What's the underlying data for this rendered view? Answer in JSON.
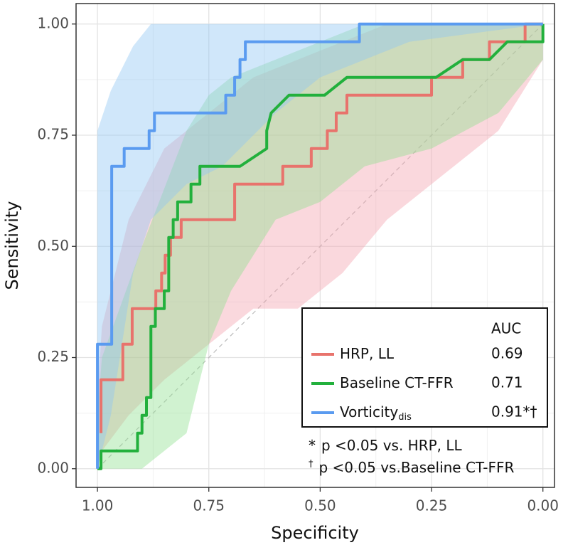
{
  "chart_data": {
    "type": "roc",
    "x_label": "Specificity",
    "y_label": "Sensitivity",
    "xlim": [
      1.048,
      -0.026
    ],
    "ylim": [
      -0.042,
      1.046
    ],
    "xticks": [
      {
        "value": 1,
        "label": "1.00"
      },
      {
        "value": 0.75,
        "label": "0.75"
      },
      {
        "value": 0.5,
        "label": "0.50"
      },
      {
        "value": 0.25,
        "label": "0.25"
      },
      {
        "value": 0,
        "label": "0.00"
      }
    ],
    "yticks": [
      {
        "value": 0,
        "label": "0.00"
      },
      {
        "value": 0.25,
        "label": "0.25"
      },
      {
        "value": 0.5,
        "label": "0.50"
      },
      {
        "value": 0.75,
        "label": "0.75"
      },
      {
        "value": 1,
        "label": "1.00"
      }
    ],
    "grid": true,
    "legend_header": "AUC",
    "series": [
      {
        "name": "HRP, LL",
        "color": "#e8736c",
        "band_color": "#f4a3ad",
        "auc_label": "0.69",
        "x": [
          0.992,
          0.992,
          0.943,
          0.943,
          0.922,
          0.922,
          0.869,
          0.869,
          0.856,
          0.856,
          0.848,
          0.848,
          0.836,
          0.836,
          0.812,
          0.812,
          0.692,
          0.692,
          0.584,
          0.584,
          0.52,
          0.52,
          0.484,
          0.484,
          0.464,
          0.464,
          0.44,
          0.44,
          0.25,
          0.25,
          0.18,
          0.18,
          0.12,
          0.12,
          0.04,
          0.04,
          0
        ],
        "values": [
          0.08,
          0.2,
          0.2,
          0.28,
          0.28,
          0.36,
          0.36,
          0.4,
          0.4,
          0.44,
          0.44,
          0.48,
          0.48,
          0.52,
          0.52,
          0.56,
          0.56,
          0.64,
          0.64,
          0.68,
          0.68,
          0.72,
          0.72,
          0.76,
          0.76,
          0.8,
          0.8,
          0.84,
          0.84,
          0.88,
          0.88,
          0.92,
          0.92,
          0.96,
          0.96,
          1,
          1
        ],
        "band": {
          "x": [
            1,
            0.99,
            0.93,
            0.85,
            0.75,
            0.65,
            0.55,
            0.45,
            0.35,
            0.25,
            0.1,
            0
          ],
          "upper": [
            0.16,
            0.32,
            0.56,
            0.72,
            0.8,
            0.88,
            0.92,
            0.96,
            1,
            1,
            1,
            1
          ],
          "lower": [
            0,
            0.04,
            0.12,
            0.2,
            0.28,
            0.36,
            0.36,
            0.44,
            0.56,
            0.64,
            0.76,
            0.92
          ]
        }
      },
      {
        "name": "Baseline CT-FFR",
        "color": "#22b03c",
        "band_color": "#90e090",
        "auc_label": "0.71",
        "x": [
          1,
          0.992,
          0.992,
          0.91,
          0.91,
          0.9,
          0.9,
          0.89,
          0.89,
          0.88,
          0.88,
          0.87,
          0.87,
          0.85,
          0.85,
          0.84,
          0.84,
          0.83,
          0.83,
          0.82,
          0.82,
          0.79,
          0.79,
          0.77,
          0.77,
          0.68,
          0.62,
          0.62,
          0.61,
          0.57,
          0.49,
          0.44,
          0.24,
          0.18,
          0.12,
          0.08,
          0,
          0
        ],
        "values": [
          0,
          0,
          0.04,
          0.04,
          0.08,
          0.08,
          0.12,
          0.12,
          0.16,
          0.16,
          0.32,
          0.32,
          0.36,
          0.36,
          0.4,
          0.4,
          0.52,
          0.52,
          0.56,
          0.56,
          0.6,
          0.6,
          0.64,
          0.64,
          0.68,
          0.68,
          0.72,
          0.76,
          0.8,
          0.84,
          0.84,
          0.88,
          0.88,
          0.92,
          0.92,
          0.96,
          0.96,
          1
        ],
        "band": {
          "x": [
            1,
            0.99,
            0.9,
            0.8,
            0.75,
            0.7,
            0.6,
            0.5,
            0.4,
            0.25,
            0.1,
            0
          ],
          "upper": [
            0.12,
            0.25,
            0.5,
            0.76,
            0.84,
            0.88,
            0.92,
            0.96,
            1,
            1,
            1,
            1
          ],
          "lower": [
            0,
            0,
            0,
            0.08,
            0.28,
            0.4,
            0.56,
            0.6,
            0.68,
            0.72,
            0.8,
            0.92
          ]
        }
      },
      {
        "name": "Vorticity",
        "name_subscript": "dis",
        "color": "#5a9bf0",
        "band_color": "#8ec5f2",
        "auc_label": "0.91*†",
        "x": [
          1,
          1,
          0.968,
          0.968,
          0.94,
          0.94,
          0.884,
          0.884,
          0.872,
          0.872,
          0.712,
          0.712,
          0.692,
          0.692,
          0.68,
          0.68,
          0.668,
          0.668,
          0.412,
          0.412,
          0
        ],
        "values": [
          0,
          0.28,
          0.28,
          0.68,
          0.68,
          0.72,
          0.72,
          0.76,
          0.76,
          0.8,
          0.8,
          0.84,
          0.84,
          0.88,
          0.88,
          0.92,
          0.92,
          0.96,
          0.96,
          1,
          1
        ],
        "band": {
          "x": [
            1,
            0.97,
            0.92,
            0.88,
            0.8,
            0.72,
            0.6,
            0.5,
            0.3,
            0
          ],
          "upper": [
            0.76,
            0.85,
            0.95,
            1,
            1,
            1,
            1,
            1,
            1,
            1
          ],
          "lower": [
            0,
            0.12,
            0.44,
            0.56,
            0.64,
            0.68,
            0.8,
            0.88,
            0.96,
            1
          ]
        }
      }
    ],
    "notes": [
      {
        "mark": "*",
        "text": "p <0.05 vs. HRP, LL"
      },
      {
        "mark": "†",
        "text": "p <0.05 vs.Baseline CT-FFR"
      }
    ]
  }
}
